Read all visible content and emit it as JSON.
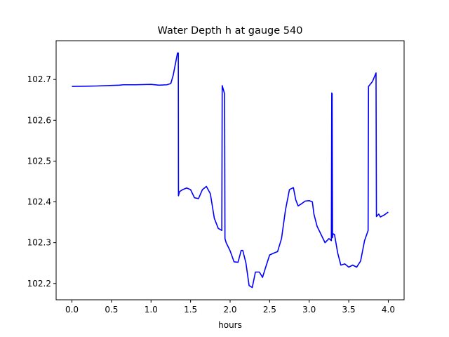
{
  "chart_data": {
    "type": "line",
    "title": "Water Depth h at gauge 540",
    "xlabel": "hours",
    "ylabel": "",
    "xlim": [
      -0.2,
      4.2
    ],
    "ylim": [
      102.16,
      102.795
    ],
    "xticks": [
      0.0,
      0.5,
      1.0,
      1.5,
      2.0,
      2.5,
      3.0,
      3.5,
      4.0
    ],
    "xtick_labels": [
      "0.0",
      "0.5",
      "1.0",
      "1.5",
      "2.0",
      "2.5",
      "3.0",
      "3.5",
      "4.0"
    ],
    "yticks": [
      102.2,
      102.3,
      102.4,
      102.5,
      102.6,
      102.7
    ],
    "ytick_labels": [
      "102.2",
      "102.3",
      "102.4",
      "102.5",
      "102.6",
      "102.7"
    ],
    "grid": false,
    "series": [
      {
        "color": "#0000ff",
        "x": [
          0.0,
          0.3,
          0.6,
          0.65,
          0.8,
          1.0,
          1.1,
          1.2,
          1.25,
          1.28,
          1.31,
          1.335,
          1.345,
          1.347,
          1.36,
          1.4,
          1.45,
          1.5,
          1.55,
          1.6,
          1.65,
          1.7,
          1.75,
          1.8,
          1.85,
          1.895,
          1.9,
          1.93,
          1.935,
          1.95,
          2.0,
          2.05,
          2.1,
          2.14,
          2.16,
          2.2,
          2.24,
          2.28,
          2.32,
          2.37,
          2.41,
          2.45,
          2.5,
          2.56,
          2.6,
          2.65,
          2.7,
          2.75,
          2.8,
          2.83,
          2.86,
          2.9,
          2.95,
          3.0,
          3.04,
          3.06,
          3.1,
          3.15,
          3.2,
          3.25,
          3.28,
          3.285,
          3.29,
          3.295,
          3.3,
          3.32,
          3.36,
          3.4,
          3.45,
          3.5,
          3.55,
          3.6,
          3.65,
          3.7,
          3.745,
          3.75,
          3.8,
          3.845,
          3.85,
          3.88,
          3.9,
          3.95,
          4.0
        ],
        "y": [
          102.683,
          102.684,
          102.686,
          102.687,
          102.687,
          102.688,
          102.686,
          102.687,
          102.69,
          102.71,
          102.74,
          102.765,
          102.765,
          102.415,
          102.425,
          102.43,
          102.434,
          102.43,
          102.41,
          102.408,
          102.43,
          102.438,
          102.42,
          102.36,
          102.335,
          102.33,
          102.685,
          102.665,
          102.31,
          102.3,
          102.28,
          102.253,
          102.252,
          102.281,
          102.281,
          102.25,
          102.195,
          102.19,
          102.228,
          102.228,
          102.215,
          102.24,
          102.27,
          102.275,
          102.278,
          102.31,
          102.38,
          102.43,
          102.435,
          102.405,
          102.39,
          102.395,
          102.402,
          102.403,
          102.4,
          102.37,
          102.34,
          102.32,
          102.3,
          102.31,
          102.305,
          102.667,
          102.665,
          102.312,
          102.322,
          102.32,
          102.275,
          102.245,
          102.248,
          102.24,
          102.245,
          102.24,
          102.255,
          102.305,
          102.33,
          102.683,
          102.695,
          102.716,
          102.364,
          102.37,
          102.363,
          102.368,
          102.375
        ]
      }
    ]
  }
}
